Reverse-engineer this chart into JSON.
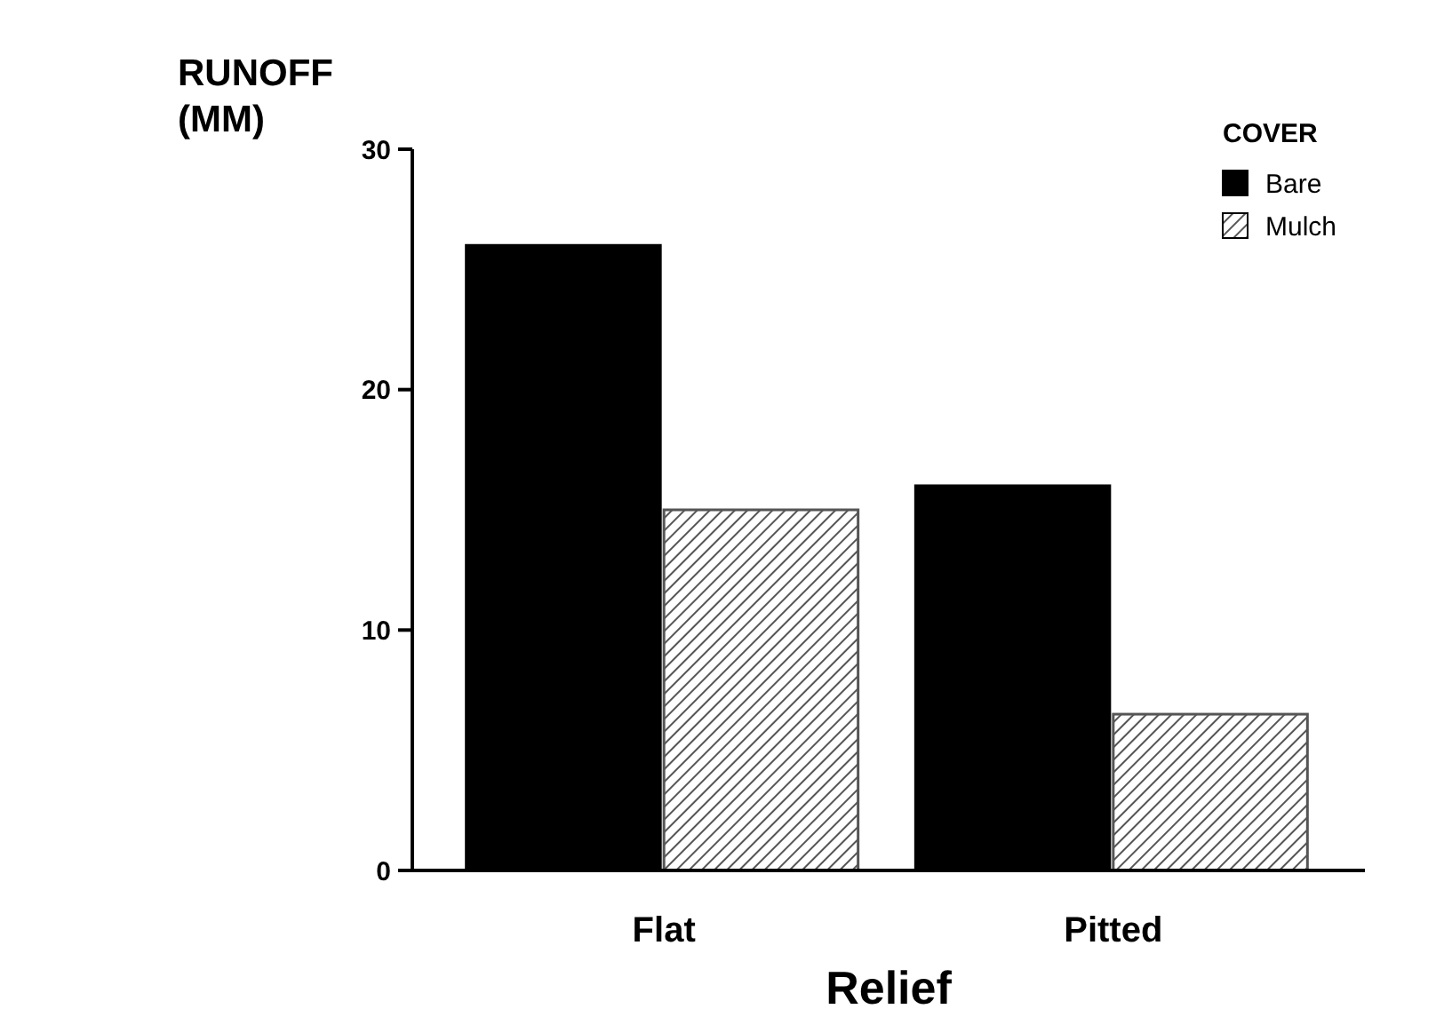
{
  "chart_data": {
    "type": "bar",
    "ylabel": "RUNOFF (MM)",
    "xlabel": "Relief",
    "legend_title": "COVER",
    "categories": [
      "Flat",
      "Pitted"
    ],
    "series": [
      {
        "name": "Bare",
        "color": "#000000",
        "values": [
          26,
          16
        ]
      },
      {
        "name": "Mulch",
        "color": "#555555",
        "values": [
          15,
          6.5
        ]
      }
    ],
    "ylim": [
      0,
      30
    ],
    "yticks": [
      0,
      10,
      20,
      30
    ],
    "legend": "top right",
    "grid": false
  }
}
